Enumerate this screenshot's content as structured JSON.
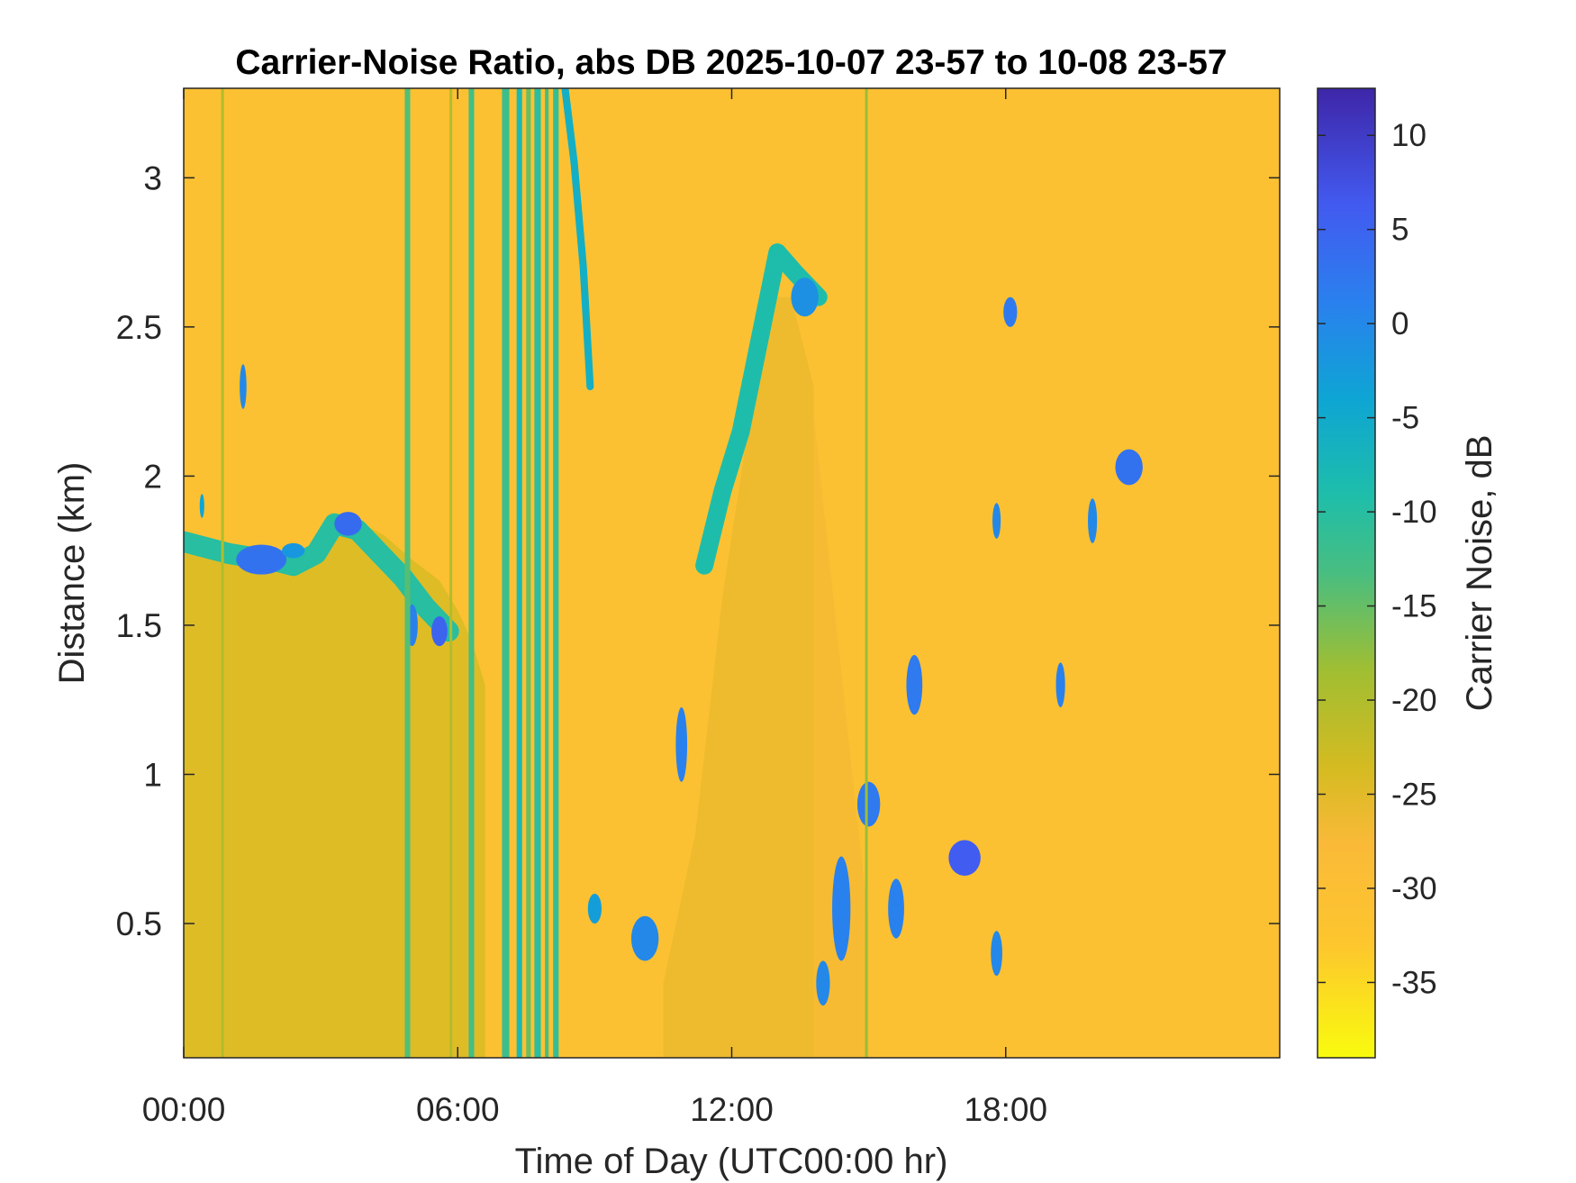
{
  "chart_data": {
    "type": "heatmap",
    "title": "Carrier-Noise Ratio, abs DB 2025-10-07 23-57 to 10-08 23-57",
    "xlabel": "Time of Day (UTC00:00 hr)",
    "ylabel": "Distance (km)",
    "colorbar_label": "Carrier Noise, dB",
    "x_unit": "hours",
    "xlim": [
      0,
      24
    ],
    "ylim": [
      0.05,
      3.3
    ],
    "clim": [
      -39,
      12.5
    ],
    "x_ticks": [
      {
        "value": 0,
        "label": "00:00"
      },
      {
        "value": 6,
        "label": "06:00"
      },
      {
        "value": 12,
        "label": "12:00"
      },
      {
        "value": 18,
        "label": "18:00"
      }
    ],
    "y_ticks": [
      {
        "value": 0.5,
        "label": "0.5"
      },
      {
        "value": 1,
        "label": "1"
      },
      {
        "value": 1.5,
        "label": "1.5"
      },
      {
        "value": 2,
        "label": "2"
      },
      {
        "value": 2.5,
        "label": "2.5"
      },
      {
        "value": 3,
        "label": "3"
      }
    ],
    "colorbar_ticks": [
      {
        "value": 10,
        "label": "10"
      },
      {
        "value": 5,
        "label": "5"
      },
      {
        "value": 0,
        "label": "0"
      },
      {
        "value": -5,
        "label": "-5"
      },
      {
        "value": -10,
        "label": "-10"
      },
      {
        "value": -15,
        "label": "-15"
      },
      {
        "value": -20,
        "label": "-20"
      },
      {
        "value": -25,
        "label": "-25"
      },
      {
        "value": -30,
        "label": "-30"
      },
      {
        "value": -35,
        "label": "-35"
      }
    ],
    "colormap": "parula",
    "background_value": -31,
    "features": [
      {
        "name": "boundary layer",
        "type": "fill",
        "value": -24,
        "x": [
          0.0,
          0.5,
          1.0,
          1.5,
          2.0,
          2.6,
          3.2,
          3.8,
          4.4,
          5.0,
          5.6,
          6.0,
          6.3,
          6.6
        ],
        "ytop": [
          1.8,
          1.78,
          1.75,
          1.74,
          1.73,
          1.68,
          1.8,
          1.85,
          1.8,
          1.72,
          1.65,
          1.55,
          1.45,
          1.3
        ]
      },
      {
        "name": "residual layer",
        "type": "fill",
        "value": -26,
        "x": [
          10.5,
          11.2,
          11.8,
          12.3,
          12.8,
          13.3,
          13.8
        ],
        "ytop": [
          0.3,
          0.8,
          1.6,
          2.1,
          2.6,
          2.6,
          2.3
        ]
      },
      {
        "name": "residual layer upper",
        "type": "fill",
        "value": -27,
        "x": [
          13.8,
          14.5,
          15.0
        ],
        "ytop": [
          2.2,
          1.2,
          0.5
        ]
      },
      {
        "name": "boundary layer top",
        "type": "band",
        "value": -10,
        "x": [
          0.0,
          0.5,
          1.0,
          1.4,
          1.9,
          2.4,
          2.9,
          3.3,
          3.8,
          4.3,
          4.8,
          5.3,
          5.8
        ],
        "y": [
          1.78,
          1.76,
          1.74,
          1.73,
          1.72,
          1.7,
          1.74,
          1.84,
          1.82,
          1.74,
          1.66,
          1.56,
          1.48
        ],
        "thickness": 0.07
      },
      {
        "name": "rising layer edge",
        "type": "band",
        "value": -9,
        "x": [
          11.4,
          11.8,
          12.2,
          12.6,
          13.0,
          13.4,
          13.9
        ],
        "y": [
          1.7,
          1.95,
          2.15,
          2.45,
          2.75,
          2.68,
          2.6
        ],
        "thickness": 0.06
      },
      {
        "name": "stratus",
        "type": "blob",
        "value": -1,
        "x": 13.6,
        "y": 2.6,
        "w": 0.6,
        "h": 0.13
      },
      {
        "name": "cloud a",
        "type": "blob",
        "value": 3,
        "x": 1.7,
        "y": 1.72,
        "w": 1.1,
        "h": 0.1
      },
      {
        "name": "cloud b",
        "type": "blob",
        "value": 4,
        "x": 3.6,
        "y": 1.84,
        "w": 0.6,
        "h": 0.08
      },
      {
        "name": "cloud c",
        "type": "blob",
        "value": 5,
        "x": 5.6,
        "y": 1.48,
        "w": 0.35,
        "h": 0.1
      },
      {
        "name": "cloud d",
        "type": "blob",
        "value": 1,
        "x": 5.0,
        "y": 1.5,
        "w": 0.25,
        "h": 0.14
      },
      {
        "name": "cloud e",
        "type": "blob",
        "value": 0,
        "x": 1.3,
        "y": 2.3,
        "w": 0.15,
        "h": 0.15
      },
      {
        "name": "cloud f",
        "type": "blob",
        "value": 2,
        "x": 16.0,
        "y": 1.3,
        "w": 0.35,
        "h": 0.2
      },
      {
        "name": "cloud g",
        "type": "blob",
        "value": 6,
        "x": 17.1,
        "y": 0.72,
        "w": 0.7,
        "h": 0.12
      },
      {
        "name": "cloud h",
        "type": "blob",
        "value": 2,
        "x": 15.0,
        "y": 0.9,
        "w": 0.5,
        "h": 0.15
      },
      {
        "name": "cloud i",
        "type": "blob",
        "value": 1,
        "x": 14.4,
        "y": 0.55,
        "w": 0.4,
        "h": 0.35
      },
      {
        "name": "cloud j",
        "type": "blob",
        "value": 0,
        "x": 14.0,
        "y": 0.3,
        "w": 0.3,
        "h": 0.15
      },
      {
        "name": "cloud k",
        "type": "blob",
        "value": 1,
        "x": 15.6,
        "y": 0.55,
        "w": 0.35,
        "h": 0.2
      },
      {
        "name": "cloud l",
        "type": "blob",
        "value": 3,
        "x": 20.7,
        "y": 2.03,
        "w": 0.6,
        "h": 0.12
      },
      {
        "name": "cloud m",
        "type": "blob",
        "value": 2,
        "x": 18.1,
        "y": 2.55,
        "w": 0.3,
        "h": 0.1
      },
      {
        "name": "cloud n",
        "type": "blob",
        "value": 0,
        "x": 17.8,
        "y": 1.85,
        "w": 0.18,
        "h": 0.12
      },
      {
        "name": "cloud o",
        "type": "blob",
        "value": 1,
        "x": 19.2,
        "y": 1.3,
        "w": 0.2,
        "h": 0.15
      },
      {
        "name": "cloud p",
        "type": "blob",
        "value": 0,
        "x": 19.9,
        "y": 1.85,
        "w": 0.2,
        "h": 0.15
      },
      {
        "name": "cloud q",
        "type": "blob",
        "value": -3,
        "x": 9.0,
        "y": 0.55,
        "w": 0.3,
        "h": 0.1
      },
      {
        "name": "cloud r",
        "type": "blob",
        "value": 0,
        "x": 10.1,
        "y": 0.45,
        "w": 0.6,
        "h": 0.15
      },
      {
        "name": "cloud s",
        "type": "blob",
        "value": 0,
        "x": 17.8,
        "y": 0.4,
        "w": 0.25,
        "h": 0.15
      },
      {
        "name": "cloud t",
        "type": "blob",
        "value": -2,
        "x": 2.4,
        "y": 1.75,
        "w": 0.5,
        "h": 0.05
      },
      {
        "name": "cloud u",
        "type": "blob",
        "value": -4,
        "x": 0.4,
        "y": 1.9,
        "w": 0.1,
        "h": 0.08
      },
      {
        "name": "cloud v",
        "type": "blob",
        "value": 1,
        "x": 10.9,
        "y": 1.1,
        "w": 0.25,
        "h": 0.25
      },
      {
        "name": "column 1",
        "type": "column",
        "value": -14,
        "x": 4.9,
        "w": 0.12
      },
      {
        "name": "column 2",
        "type": "column",
        "value": -13,
        "x": 6.3,
        "w": 0.12
      },
      {
        "name": "column 3",
        "type": "column",
        "value": -12,
        "x": 7.05,
        "w": 0.16
      },
      {
        "name": "column 4",
        "type": "column",
        "value": -8,
        "x": 7.35,
        "w": 0.12
      },
      {
        "name": "column 5",
        "type": "column",
        "value": -15,
        "x": 7.55,
        "w": 0.1
      },
      {
        "name": "column 6",
        "type": "column",
        "value": -10,
        "x": 7.75,
        "w": 0.14
      },
      {
        "name": "column 7",
        "type": "column",
        "value": -13,
        "x": 7.95,
        "w": 0.08
      },
      {
        "name": "column 8",
        "type": "column",
        "value": -11,
        "x": 8.15,
        "w": 0.12
      },
      {
        "name": "column 9",
        "type": "column",
        "value": -20,
        "x": 0.85,
        "w": 0.06
      },
      {
        "name": "column 10",
        "type": "column",
        "value": -20,
        "x": 5.85,
        "w": 0.06
      },
      {
        "name": "column 11",
        "type": "column",
        "value": -18,
        "x": 14.95,
        "w": 0.06
      },
      {
        "name": "trail 8.5",
        "type": "streak",
        "value": -6,
        "x": [
          8.35,
          8.55,
          8.75,
          8.9
        ],
        "y": [
          3.3,
          3.05,
          2.7,
          2.3
        ],
        "thickness": 0.16
      }
    ]
  }
}
